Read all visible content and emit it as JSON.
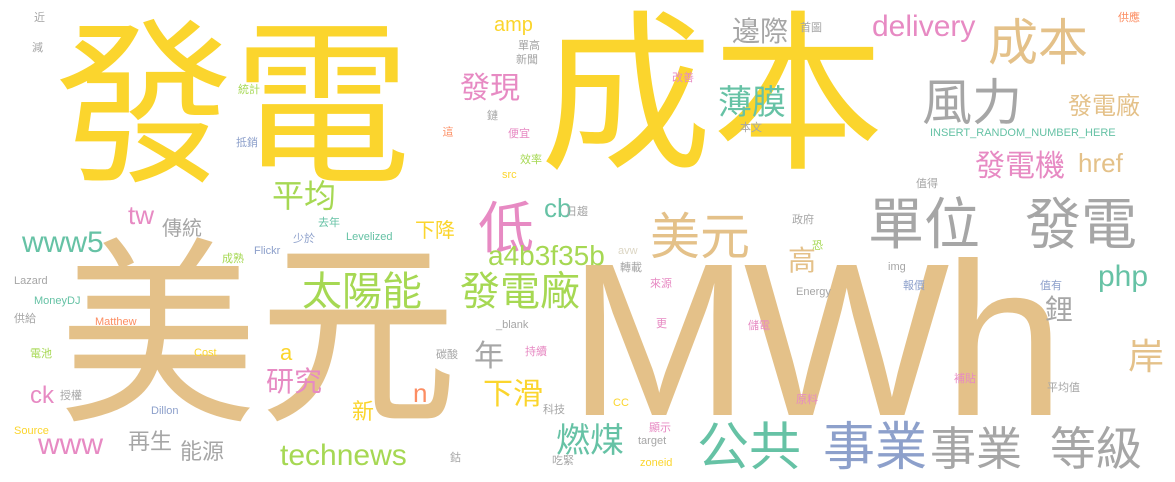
{
  "word_cloud": {
    "palette": {
      "yellow": "#fbd52d",
      "tan": "#e4c189",
      "gray": "#a6a6a6",
      "green": "#a6d853",
      "pink": "#e78ac3",
      "blue": "#8da0cb",
      "teal": "#66c2a5",
      "orange": "#fc8d62",
      "pale": "#dcd6c4"
    },
    "words": [
      {
        "text": "發電",
        "color": "yellow"
      },
      {
        "text": "成本",
        "color": "yellow"
      },
      {
        "text": "美元",
        "color": "tan"
      },
      {
        "text": "MWh",
        "color": "tan"
      },
      {
        "text": "成本",
        "color": "tan"
      },
      {
        "text": "風力",
        "color": "gray"
      },
      {
        "text": "單位",
        "color": "gray"
      },
      {
        "text": "發電",
        "color": "gray"
      },
      {
        "text": "美元",
        "color": "tan"
      },
      {
        "text": "低",
        "color": "pink"
      },
      {
        "text": "太陽能",
        "color": "green"
      },
      {
        "text": "發電廠",
        "color": "green"
      },
      {
        "text": "公共",
        "color": "teal"
      },
      {
        "text": "事業",
        "color": "blue"
      },
      {
        "text": "事業",
        "color": "gray"
      },
      {
        "text": "等級",
        "color": "gray"
      },
      {
        "text": "薄膜",
        "color": "teal"
      },
      {
        "text": "發電廠",
        "color": "tan"
      },
      {
        "text": "發電機",
        "color": "pink"
      },
      {
        "text": "燃煤",
        "color": "teal"
      },
      {
        "text": "technews",
        "color": "green"
      },
      {
        "text": "平均",
        "color": "green"
      },
      {
        "text": "邊際",
        "color": "gray"
      },
      {
        "text": "delivery",
        "color": "pink"
      },
      {
        "text": "發現",
        "color": "pink"
      },
      {
        "text": "a4b3f35b",
        "color": "green"
      },
      {
        "text": "www5",
        "color": "teal"
      },
      {
        "text": "www",
        "color": "pink"
      },
      {
        "text": "php",
        "color": "teal"
      },
      {
        "text": "href",
        "color": "tan"
      },
      {
        "text": "研究",
        "color": "pink"
      },
      {
        "text": "下滑",
        "color": "yellow"
      },
      {
        "text": "鋰",
        "color": "gray"
      },
      {
        "text": "岸",
        "color": "tan"
      },
      {
        "text": "高",
        "color": "tan"
      },
      {
        "text": "年",
        "color": "gray"
      },
      {
        "text": "cb",
        "color": "teal"
      },
      {
        "text": "tw",
        "color": "pink"
      },
      {
        "text": "傳統",
        "color": "gray"
      },
      {
        "text": "下降",
        "color": "yellow"
      },
      {
        "text": "再生",
        "color": "gray"
      },
      {
        "text": "能源",
        "color": "gray"
      },
      {
        "text": "ck",
        "color": "pink"
      },
      {
        "text": "n",
        "color": "orange"
      },
      {
        "text": "新",
        "color": "yellow"
      },
      {
        "text": "a",
        "color": "yellow"
      },
      {
        "text": "amp",
        "color": "yellow"
      },
      {
        "text": "INSERT_RANDOM_NUMBER_HERE",
        "color": "teal"
      },
      {
        "text": "近",
        "color": "gray"
      },
      {
        "text": "減",
        "color": "gray"
      },
      {
        "text": "統計",
        "color": "green"
      },
      {
        "text": "抵銷",
        "color": "blue"
      },
      {
        "text": "單高",
        "color": "gray"
      },
      {
        "text": "新聞",
        "color": "gray"
      },
      {
        "text": "首圖",
        "color": "gray"
      },
      {
        "text": "改善",
        "color": "pink"
      },
      {
        "text": "供應",
        "color": "orange"
      },
      {
        "text": "便宜",
        "color": "pink"
      },
      {
        "text": "鏈",
        "color": "gray"
      },
      {
        "text": "本文",
        "color": "gray"
      },
      {
        "text": "值得",
        "color": "gray"
      },
      {
        "text": "效率",
        "color": "green"
      },
      {
        "text": "src",
        "color": "yellow"
      },
      {
        "text": "日趨",
        "color": "gray"
      },
      {
        "text": "政府",
        "color": "gray"
      },
      {
        "text": "恐",
        "color": "green"
      },
      {
        "text": "去年",
        "color": "teal"
      },
      {
        "text": "少於",
        "color": "blue"
      },
      {
        "text": "Levelized",
        "color": "teal"
      },
      {
        "text": "Flickr",
        "color": "blue"
      },
      {
        "text": "avw",
        "color": "pale"
      },
      {
        "text": "成熟",
        "color": "green"
      },
      {
        "text": "img",
        "color": "gray"
      },
      {
        "text": "Lazard",
        "color": "gray"
      },
      {
        "text": "轉載",
        "color": "gray"
      },
      {
        "text": "來源",
        "color": "pink"
      },
      {
        "text": "報價",
        "color": "blue"
      },
      {
        "text": "值有",
        "color": "blue"
      },
      {
        "text": "MoneyDJ",
        "color": "teal"
      },
      {
        "text": "Energy",
        "color": "gray"
      },
      {
        "text": "供給",
        "color": "gray"
      },
      {
        "text": "Matthew",
        "color": "orange"
      },
      {
        "text": "_blank",
        "color": "gray"
      },
      {
        "text": "更",
        "color": "pink"
      },
      {
        "text": "儲電",
        "color": "pink"
      },
      {
        "text": "電池",
        "color": "green"
      },
      {
        "text": "Cost",
        "color": "yellow"
      },
      {
        "text": "碳酸",
        "color": "gray"
      },
      {
        "text": "持續",
        "color": "pink"
      },
      {
        "text": "補貼",
        "color": "pink"
      },
      {
        "text": "授權",
        "color": "gray"
      },
      {
        "text": "平均值",
        "color": "gray"
      },
      {
        "text": "Dillon",
        "color": "blue"
      },
      {
        "text": "科技",
        "color": "gray"
      },
      {
        "text": "CC",
        "color": "yellow"
      },
      {
        "text": "原料",
        "color": "pink"
      },
      {
        "text": "顯示",
        "color": "pink"
      },
      {
        "text": "Source",
        "color": "yellow"
      },
      {
        "text": "target",
        "color": "gray"
      },
      {
        "text": "鈷",
        "color": "gray"
      },
      {
        "text": "吃緊",
        "color": "gray"
      },
      {
        "text": "zoneid",
        "color": "yellow"
      },
      {
        "text": "這",
        "color": "orange"
      }
    ]
  }
}
